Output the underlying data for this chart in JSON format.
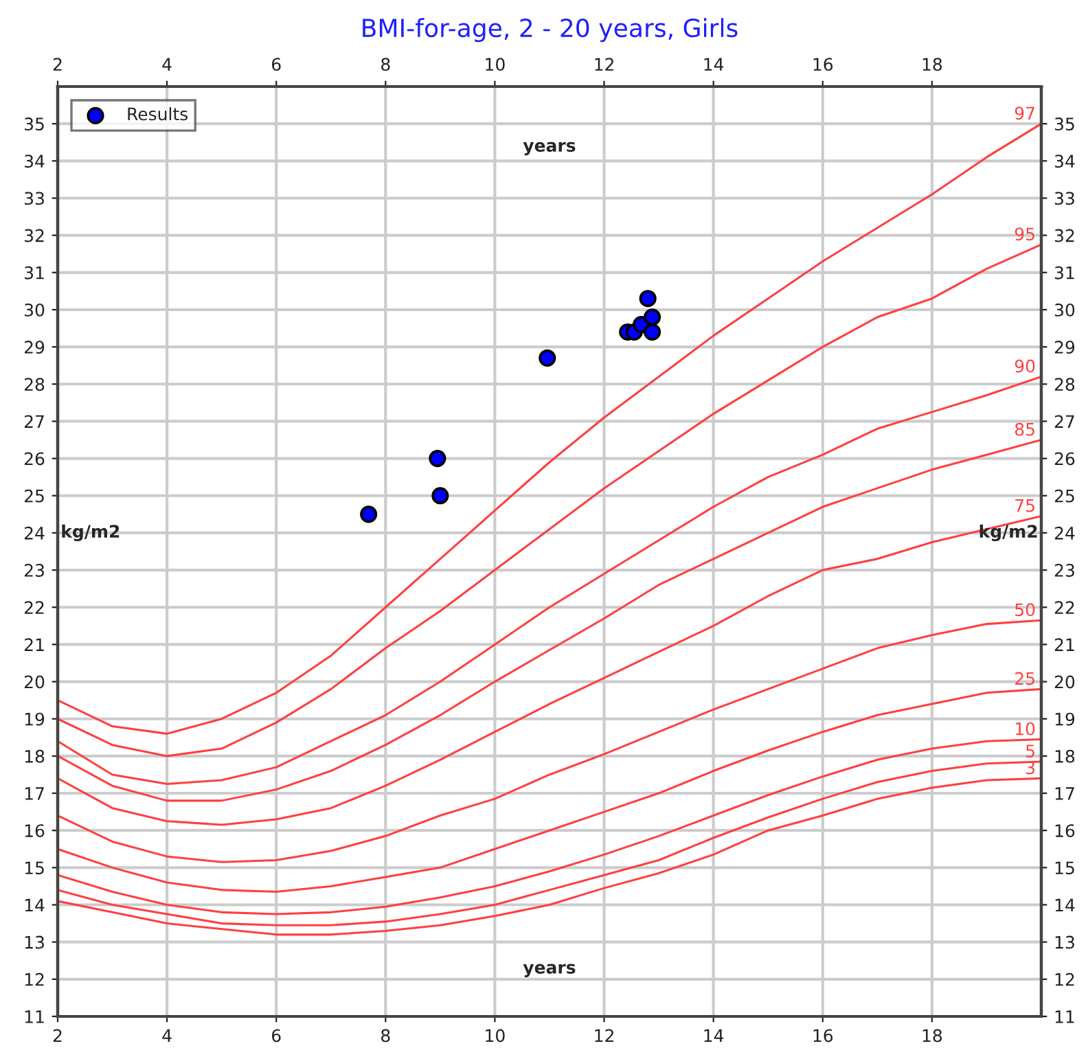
{
  "chart_data": {
    "type": "line",
    "title": "BMI-for-age, 2 - 20 years, Girls",
    "xlabel": "years",
    "x2label": "years",
    "ylabel": "kg/m2",
    "y2label": "kg/m2",
    "x": [
      2,
      3,
      4,
      5,
      6,
      7,
      8,
      9,
      10,
      11,
      12,
      13,
      14,
      15,
      16,
      17,
      18,
      19,
      20
    ],
    "series": [
      {
        "name": "97",
        "color": "#ff4040",
        "values": [
          19.5,
          18.8,
          18.6,
          19.0,
          19.7,
          20.7,
          22.0,
          23.3,
          24.6,
          25.9,
          27.1,
          28.2,
          29.3,
          30.3,
          31.3,
          32.2,
          33.1,
          34.1,
          35.0
        ]
      },
      {
        "name": "95",
        "color": "#ff4040",
        "values": [
          19.0,
          18.3,
          18.0,
          18.2,
          18.9,
          19.8,
          20.9,
          21.9,
          23.0,
          24.1,
          25.2,
          26.2,
          27.2,
          28.1,
          29.0,
          29.8,
          30.3,
          31.1,
          31.75
        ]
      },
      {
        "name": "90",
        "color": "#ff4040",
        "values": [
          18.4,
          17.5,
          17.25,
          17.35,
          17.7,
          18.4,
          19.1,
          20.0,
          21.0,
          22.0,
          22.9,
          23.8,
          24.7,
          25.5,
          26.1,
          26.8,
          27.25,
          27.7,
          28.2
        ]
      },
      {
        "name": "85",
        "color": "#ff4040",
        "values": [
          18.0,
          17.2,
          16.8,
          16.8,
          17.1,
          17.6,
          18.3,
          19.1,
          20.0,
          20.85,
          21.7,
          22.6,
          23.3,
          24.0,
          24.7,
          25.2,
          25.7,
          26.1,
          26.5
        ]
      },
      {
        "name": "75",
        "color": "#ff4040",
        "values": [
          17.4,
          16.6,
          16.25,
          16.15,
          16.3,
          16.6,
          17.2,
          17.9,
          18.65,
          19.4,
          20.1,
          20.8,
          21.5,
          22.3,
          23.0,
          23.3,
          23.75,
          24.1,
          24.45
        ]
      },
      {
        "name": "50",
        "color": "#ff4040",
        "values": [
          16.4,
          15.7,
          15.3,
          15.15,
          15.2,
          15.45,
          15.85,
          16.4,
          16.85,
          17.5,
          18.05,
          18.65,
          19.25,
          19.8,
          20.35,
          20.9,
          21.25,
          21.55,
          21.65
        ]
      },
      {
        "name": "25",
        "color": "#ff4040",
        "values": [
          15.5,
          15.0,
          14.6,
          14.4,
          14.35,
          14.5,
          14.75,
          15.0,
          15.5,
          16.0,
          16.5,
          17.0,
          17.6,
          18.15,
          18.65,
          19.1,
          19.4,
          19.7,
          19.8
        ]
      },
      {
        "name": "10",
        "color": "#ff4040",
        "values": [
          14.8,
          14.35,
          14.0,
          13.8,
          13.75,
          13.8,
          13.95,
          14.2,
          14.5,
          14.9,
          15.35,
          15.85,
          16.4,
          16.95,
          17.45,
          17.9,
          18.2,
          18.4,
          18.45
        ]
      },
      {
        "name": "5",
        "color": "#ff4040",
        "values": [
          14.4,
          14.0,
          13.75,
          13.5,
          13.45,
          13.45,
          13.55,
          13.75,
          14.0,
          14.4,
          14.8,
          15.2,
          15.8,
          16.35,
          16.85,
          17.3,
          17.6,
          17.8,
          17.85
        ]
      },
      {
        "name": "3",
        "color": "#ff4040",
        "values": [
          14.1,
          13.8,
          13.5,
          13.35,
          13.2,
          13.2,
          13.3,
          13.45,
          13.7,
          14.0,
          14.45,
          14.85,
          15.35,
          16.0,
          16.4,
          16.85,
          17.15,
          17.35,
          17.4
        ]
      },
      {
        "name": "Results",
        "type": "scatter",
        "marker": "circle",
        "color": "#0000ff",
        "x": [
          7.69,
          8.95,
          9.0,
          10.96,
          12.43,
          12.55,
          12.68,
          12.8,
          12.88,
          12.88
        ],
        "values": [
          24.5,
          26.0,
          25.0,
          28.7,
          29.4,
          29.4,
          29.6,
          30.3,
          29.8,
          29.4
        ]
      }
    ],
    "xlim": [
      2,
      20
    ],
    "xticks": [
      2,
      4,
      6,
      8,
      10,
      12,
      14,
      16,
      18
    ],
    "x2lim": [
      2,
      20
    ],
    "x2ticks": [
      2,
      4,
      6,
      8,
      10,
      12,
      14,
      16,
      18
    ],
    "ylim": [
      11,
      36
    ],
    "yticks": [
      11,
      12,
      13,
      14,
      15,
      16,
      17,
      18,
      19,
      20,
      21,
      22,
      23,
      24,
      25,
      26,
      27,
      28,
      29,
      30,
      31,
      32,
      33,
      34,
      35
    ],
    "y2lim": [
      11,
      36
    ],
    "y2ticks": [
      11,
      12,
      13,
      14,
      15,
      16,
      17,
      18,
      19,
      20,
      21,
      22,
      23,
      24,
      25,
      26,
      27,
      28,
      29,
      30,
      31,
      32,
      33,
      34,
      35
    ],
    "grid": true,
    "legend": "top left",
    "marker": "none"
  }
}
